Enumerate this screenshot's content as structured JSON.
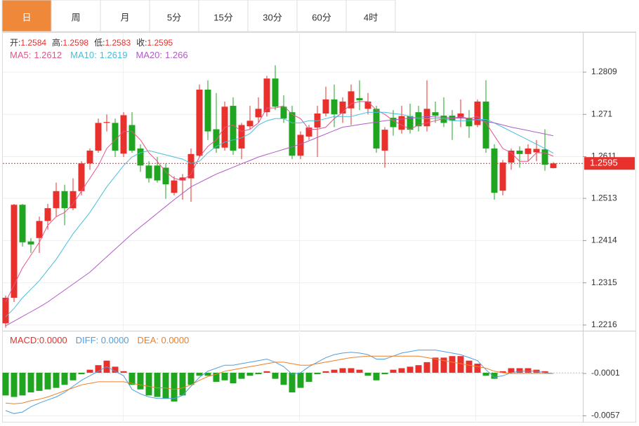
{
  "tabs": [
    "日",
    "周",
    "月",
    "5分",
    "15分",
    "30分",
    "60分",
    "4时"
  ],
  "active_tab": 0,
  "chart_data": [
    {
      "type": "candlestick",
      "up_color": "#e8312c",
      "down_color": "#1fa51f",
      "ohlc_header": [
        {
          "label": "开:",
          "value": 1.2584
        },
        {
          "label": "高:",
          "value": 1.2598
        },
        {
          "label": "低:",
          "value": 1.2583
        },
        {
          "label": "收:",
          "value": 1.2595
        }
      ],
      "last_price": 1.2595,
      "ylim": [
        1.2206,
        1.2896
      ],
      "yticks": [
        1.2216,
        1.2315,
        1.2414,
        1.2513,
        1.2611,
        1.271,
        1.2809
      ],
      "grid": true,
      "open": [
        1.222,
        1.228,
        1.2498,
        1.2412,
        1.242,
        1.246,
        1.249,
        1.253,
        1.249,
        1.253,
        1.2595,
        1.2625,
        1.269,
        1.269,
        1.2618,
        1.2685,
        1.263,
        1.259,
        1.259,
        1.2585,
        1.2526,
        1.2555,
        1.256,
        1.2613,
        1.2768,
        1.2675,
        1.2632,
        1.273,
        1.263,
        1.2682,
        1.2703,
        1.2715,
        1.2794,
        1.2728,
        1.2715,
        1.2613,
        1.2658,
        1.2679,
        1.2712,
        1.2745,
        1.2712,
        1.2724,
        1.2748,
        1.2723,
        1.2723,
        1.2625,
        1.2702,
        1.2674,
        1.2706,
        1.2715,
        1.2682,
        1.2715,
        1.2707,
        1.2707,
        1.2702,
        1.2702,
        1.2685,
        1.274,
        1.263,
        1.2531,
        1.2597,
        1.2625,
        1.2617,
        1.2621,
        1.2628,
        1.2584
      ],
      "high": [
        1.2285,
        1.25,
        1.25,
        1.242,
        1.247,
        1.25,
        1.255,
        1.2545,
        1.256,
        1.26,
        1.263,
        1.27,
        1.271,
        1.27,
        1.2715,
        1.2715,
        1.264,
        1.26,
        1.261,
        1.2595,
        1.2565,
        1.257,
        1.263,
        1.278,
        1.279,
        1.276,
        1.274,
        1.275,
        1.269,
        1.273,
        1.275,
        1.28,
        1.2825,
        1.2755,
        1.273,
        1.267,
        1.2685,
        1.273,
        1.2775,
        1.278,
        1.275,
        1.278,
        1.279,
        1.276,
        1.273,
        1.268,
        1.272,
        1.273,
        1.2735,
        1.273,
        1.279,
        1.274,
        1.275,
        1.272,
        1.2745,
        1.272,
        1.2745,
        1.279,
        1.264,
        1.2603,
        1.263,
        1.2635,
        1.264,
        1.265,
        1.2675,
        1.2598
      ],
      "low": [
        1.221,
        1.227,
        1.24,
        1.2385,
        1.2385,
        1.244,
        1.247,
        1.245,
        1.2485,
        1.252,
        1.258,
        1.262,
        1.267,
        1.261,
        1.261,
        1.262,
        1.2575,
        1.255,
        1.255,
        1.2512,
        1.252,
        1.251,
        1.2505,
        1.261,
        1.265,
        1.262,
        1.2625,
        1.2615,
        1.2605,
        1.2675,
        1.269,
        1.2705,
        1.272,
        1.269,
        1.2605,
        1.2605,
        1.265,
        1.261,
        1.2705,
        1.268,
        1.269,
        1.2685,
        1.272,
        1.271,
        1.262,
        1.2585,
        1.266,
        1.2665,
        1.2665,
        1.267,
        1.267,
        1.269,
        1.268,
        1.265,
        1.268,
        1.2655,
        1.268,
        1.262,
        1.251,
        1.252,
        1.258,
        1.2585,
        1.26,
        1.26,
        1.2578,
        1.2583
      ],
      "close": [
        1.228,
        1.2498,
        1.241,
        1.2405,
        1.246,
        1.249,
        1.253,
        1.249,
        1.253,
        1.2595,
        1.2625,
        1.269,
        1.2692,
        1.2625,
        1.2708,
        1.2625,
        1.259,
        1.256,
        1.2555,
        1.2546,
        1.2555,
        1.2562,
        1.2617,
        1.2768,
        1.267,
        1.263,
        1.2728,
        1.2625,
        1.2685,
        1.2695,
        1.2723,
        1.2794,
        1.2728,
        1.27,
        1.2613,
        1.2662,
        1.2679,
        1.2712,
        1.2745,
        1.271,
        1.274,
        1.2764,
        1.2743,
        1.274,
        1.263,
        1.2674,
        1.268,
        1.2706,
        1.2674,
        1.2682,
        1.2723,
        1.2707,
        1.269,
        1.2695,
        1.2712,
        1.2682,
        1.274,
        1.263,
        1.2526,
        1.2597,
        1.2625,
        1.2617,
        1.263,
        1.2629,
        1.2592,
        1.2595
      ],
      "series": [
        {
          "name": "MA5:",
          "legend_value": 1.2612,
          "color": "#e4558c",
          "values": [
            1.227,
            1.231,
            1.235,
            1.238,
            1.241,
            1.245,
            1.247,
            1.248,
            1.25,
            1.253,
            1.256,
            1.259,
            1.263,
            1.265,
            1.267,
            1.267,
            1.265,
            1.262,
            1.26,
            1.2575,
            1.256,
            1.2555,
            1.257,
            1.261,
            1.2635,
            1.265,
            1.268,
            1.2685,
            1.267,
            1.2675,
            1.269,
            1.2725,
            1.2725,
            1.273,
            1.271,
            1.27,
            1.2675,
            1.2675,
            1.268,
            1.27,
            1.2715,
            1.2735,
            1.274,
            1.274,
            1.272,
            1.271,
            1.2695,
            1.2685,
            1.2675,
            1.2685,
            1.269,
            1.2695,
            1.27,
            1.27,
            1.2705,
            1.27,
            1.2705,
            1.269,
            1.266,
            1.263,
            1.262,
            1.26,
            1.26,
            1.262,
            1.262,
            1.2612
          ]
        },
        {
          "name": "MA10:",
          "legend_value": 1.2619,
          "color": "#46bfdb",
          "values": [
            1.2235,
            1.2255,
            1.228,
            1.23,
            1.232,
            1.2345,
            1.237,
            1.24,
            1.243,
            1.2455,
            1.248,
            1.251,
            1.254,
            1.2565,
            1.259,
            1.261,
            1.262,
            1.2625,
            1.262,
            1.2615,
            1.261,
            1.2605,
            1.2595,
            1.26,
            1.262,
            1.2635,
            1.2645,
            1.265,
            1.2655,
            1.2665,
            1.2685,
            1.2695,
            1.27,
            1.27,
            1.269,
            1.269,
            1.2695,
            1.2695,
            1.27,
            1.2705,
            1.2705,
            1.2705,
            1.271,
            1.2715,
            1.2715,
            1.2715,
            1.2712,
            1.271,
            1.2705,
            1.27,
            1.27,
            1.27,
            1.27,
            1.2695,
            1.2695,
            1.2695,
            1.2698,
            1.2698,
            1.269,
            1.268,
            1.267,
            1.266,
            1.265,
            1.264,
            1.263,
            1.2619
          ]
        },
        {
          "name": "MA20:",
          "legend_value": 1.266,
          "color": "#b15bc6",
          "values": [
            1.2214,
            1.2225,
            1.2236,
            1.2247,
            1.2258,
            1.227,
            1.2284,
            1.2298,
            1.2312,
            1.2326,
            1.234,
            1.2358,
            1.2376,
            1.2394,
            1.2412,
            1.243,
            1.2446,
            1.2462,
            1.2478,
            1.2494,
            1.251,
            1.2525,
            1.254,
            1.255,
            1.256,
            1.257,
            1.2578,
            1.2586,
            1.2594,
            1.2602,
            1.261,
            1.2616,
            1.2622,
            1.2628,
            1.2634,
            1.264,
            1.2648,
            1.2656,
            1.2664,
            1.2672,
            1.268,
            1.2683,
            1.2686,
            1.2689,
            1.2692,
            1.2695,
            1.2697,
            1.2699,
            1.2701,
            1.2703,
            1.2705,
            1.2704,
            1.2703,
            1.2702,
            1.2701,
            1.27,
            1.2697,
            1.2693,
            1.269,
            1.2685,
            1.268,
            1.2676,
            1.2672,
            1.2668,
            1.2664,
            1.266
          ]
        }
      ]
    },
    {
      "type": "macd",
      "down_color": "#1fa51f",
      "ylim": [
        -0.0063,
        0.005
      ],
      "yticks": [
        -0.0057,
        -0.0001
      ],
      "series": [
        {
          "name": "MACD:0.0000",
          "color": "#e8312c",
          "values": [
            -0.003,
            -0.0032,
            -0.003,
            -0.0026,
            -0.0024,
            -0.0022,
            -0.002,
            -0.0016,
            -0.001,
            -0.0002,
            0.0004,
            0.001,
            0.0016,
            0.0008,
            0.0002,
            -0.0016,
            -0.0022,
            -0.003,
            -0.0032,
            -0.0034,
            -0.0038,
            -0.003,
            -0.0016,
            -0.0004,
            -0.0004,
            -0.0012,
            -0.001,
            -0.0014,
            -0.0008,
            -0.0004,
            -0.0002,
            0.0002,
            -0.0008,
            -0.0016,
            -0.0026,
            -0.002,
            -0.0012,
            -0.0002,
            0.0002,
            0.0004,
            0.0006,
            0.0006,
            0.0004,
            -0.0004,
            -0.001,
            -0.0002,
            0.0004,
            0.0006,
            0.0008,
            0.001,
            0.0014,
            0.002,
            0.002,
            0.0022,
            0.0022,
            0.0016,
            0.0012,
            -0.0004,
            -0.0008,
            0.0002,
            0.0006,
            0.0006,
            0.0006,
            0.0004,
            0.0002,
            0
          ]
        },
        {
          "name": "DIFF: 0.0000",
          "color": "#4f9fe0",
          "values": [
            -0.005,
            -0.0054,
            -0.0052,
            -0.0045,
            -0.004,
            -0.0036,
            -0.0032,
            -0.0026,
            -0.0018,
            -0.001,
            -0.0004,
            0.0002,
            0.0008,
            0.0002,
            -0.0004,
            -0.0022,
            -0.0028,
            -0.0032,
            -0.0034,
            -0.0034,
            -0.0034,
            -0.003,
            -0.0018,
            -0.0006,
            0.0002,
            0.0006,
            0.001,
            0.001,
            0.0012,
            0.0014,
            0.0016,
            0.0018,
            0.0014,
            0.0008,
            -0.0002,
            0,
            0.0008,
            0.0014,
            0.002,
            0.0024,
            0.0026,
            0.0027,
            0.0026,
            0.0024,
            0.0018,
            0.0018,
            0.0022,
            0.0026,
            0.0028,
            0.003,
            0.003,
            0.003,
            0.0028,
            0.0026,
            0.0024,
            0.002,
            0.0016,
            0.0004,
            -0.0006,
            -0.0004,
            0,
            0.0002,
            0.0002,
            0.0002,
            0,
            -0.0001
          ]
        },
        {
          "name": "DEA: 0.0000",
          "color": "#f07f25",
          "values": [
            -0.004,
            -0.0041,
            -0.004,
            -0.0037,
            -0.0035,
            -0.0032,
            -0.0028,
            -0.0024,
            -0.002,
            -0.0016,
            -0.0014,
            -0.0012,
            -0.0012,
            -0.0012,
            -0.0012,
            -0.0014,
            -0.0016,
            -0.0018,
            -0.002,
            -0.002,
            -0.0022,
            -0.002,
            -0.0016,
            -0.001,
            -0.0005,
            -0.0002,
            0.0002,
            0.0004,
            0.0006,
            0.0008,
            0.001,
            0.0012,
            0.0014,
            0.0014,
            0.0012,
            0.001,
            0.001,
            0.0012,
            0.0014,
            0.0016,
            0.0018,
            0.002,
            0.0021,
            0.0022,
            0.0022,
            0.0022,
            0.0022,
            0.0022,
            0.0022,
            0.0022,
            0.002,
            0.0018,
            0.0016,
            0.0014,
            0.0012,
            0.001,
            0.0008,
            0.0006,
            0.0002,
            0,
            -0.0001,
            -0.0001,
            -0.0001,
            -0.0001,
            -0.0001,
            -0.0001
          ]
        }
      ]
    }
  ]
}
